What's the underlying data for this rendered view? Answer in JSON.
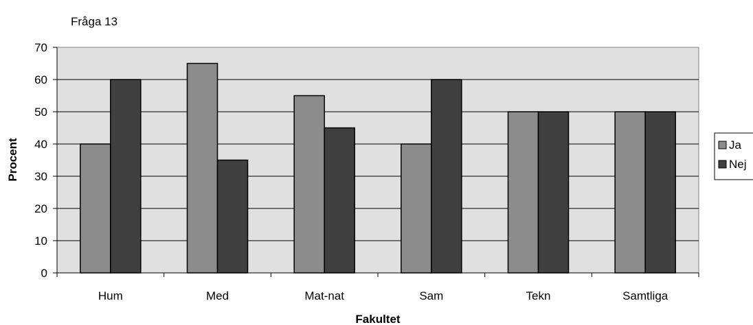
{
  "chart_data": {
    "type": "bar",
    "title": "Fråga 13",
    "xlabel": "Fakultet",
    "ylabel": "Procent",
    "categories": [
      "Hum",
      "Med",
      "Mat-nat",
      "Sam",
      "Tekn",
      "Samtliga"
    ],
    "series": [
      {
        "name": "Ja",
        "values": [
          40,
          65,
          55,
          40,
          50,
          50
        ],
        "color": "#8c8c8c"
      },
      {
        "name": "Nej",
        "values": [
          60,
          35,
          45,
          60,
          50,
          50
        ],
        "color": "#404040"
      }
    ],
    "ylim": [
      0,
      70
    ],
    "yticks": [
      0,
      10,
      20,
      30,
      40,
      50,
      60,
      70
    ],
    "grid": true,
    "plot_background": "#e0e0e0",
    "legend_position": "right"
  }
}
